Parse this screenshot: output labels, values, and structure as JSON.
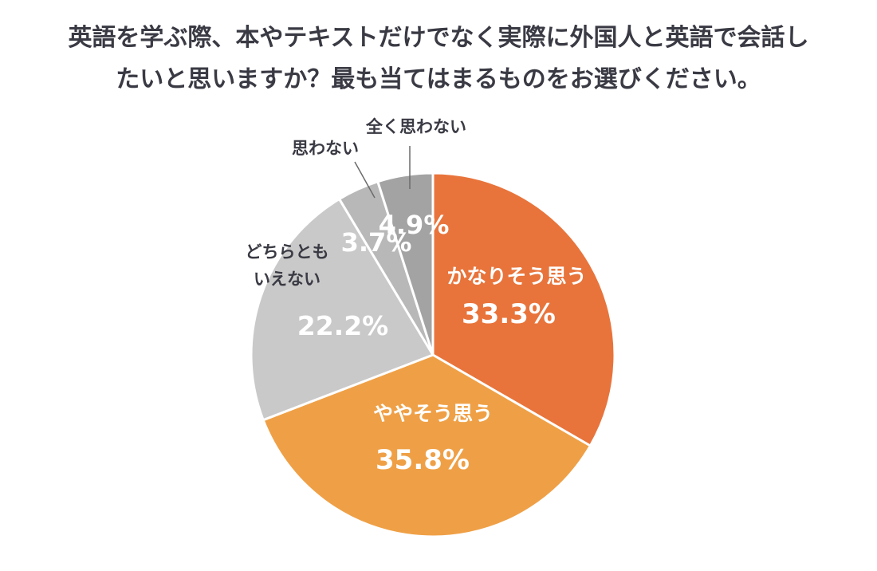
{
  "title": {
    "line1": "英語を学ぶ際、本やテキストだけでなく実際に外国人と英語で会話し",
    "line2": "たいと思いますか？最も当てはまるものをお選びください。"
  },
  "chart_data": {
    "type": "pie",
    "title": "英語を学ぶ際、本やテキストだけでなく実際に外国人と英語で会話したいと思いますか？最も当てはまるものをお選びください。",
    "slices": [
      {
        "label": "かなりそう思う",
        "value": 33.3,
        "value_label": "33.3%",
        "color": "#E8743B"
      },
      {
        "label": "ややそう思う",
        "value": 35.8,
        "value_label": "35.8%",
        "color": "#EFA046"
      },
      {
        "label": "どちらとも いえない",
        "value": 22.2,
        "value_label": "22.2%",
        "color": "#C9C9C9"
      },
      {
        "label": "思わない",
        "value": 3.7,
        "value_label": "3.7%",
        "color": "#B8B8B8"
      },
      {
        "label": "全く思わない",
        "value": 4.9,
        "value_label": "4.9%",
        "color": "#A3A3A3"
      }
    ],
    "start_angle": "12 o'clock",
    "direction": "clockwise"
  }
}
